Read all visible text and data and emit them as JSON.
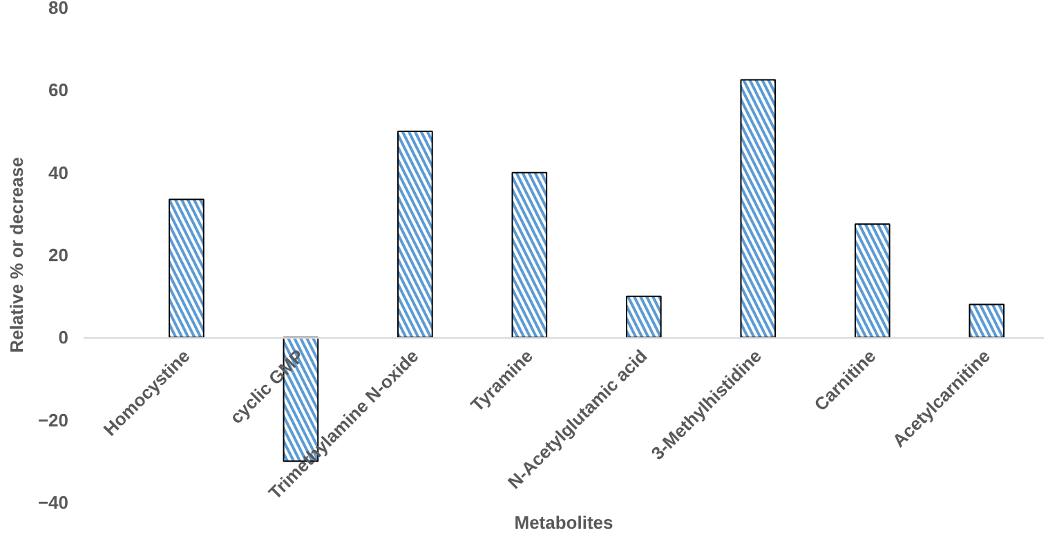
{
  "chart_data": {
    "type": "bar",
    "xlabel": "Metabolites",
    "ylabel": "Relative % or decrease",
    "categories": [
      "Homocystine",
      "cyclic GMP",
      "Trimethylamine N-oxide",
      "Tyramine",
      "N-Acetylglutamic acid",
      "3-Methylhistidine",
      "Carnitine",
      "Acetylcarnitine"
    ],
    "values": [
      33.5,
      -30,
      50,
      40,
      10,
      62.5,
      27.5,
      8
    ],
    "color": "#5b9bd5",
    "ylim": [
      -40,
      80
    ],
    "yticks": [
      -40,
      -20,
      0,
      20,
      40,
      60,
      80
    ],
    "grid": false
  }
}
